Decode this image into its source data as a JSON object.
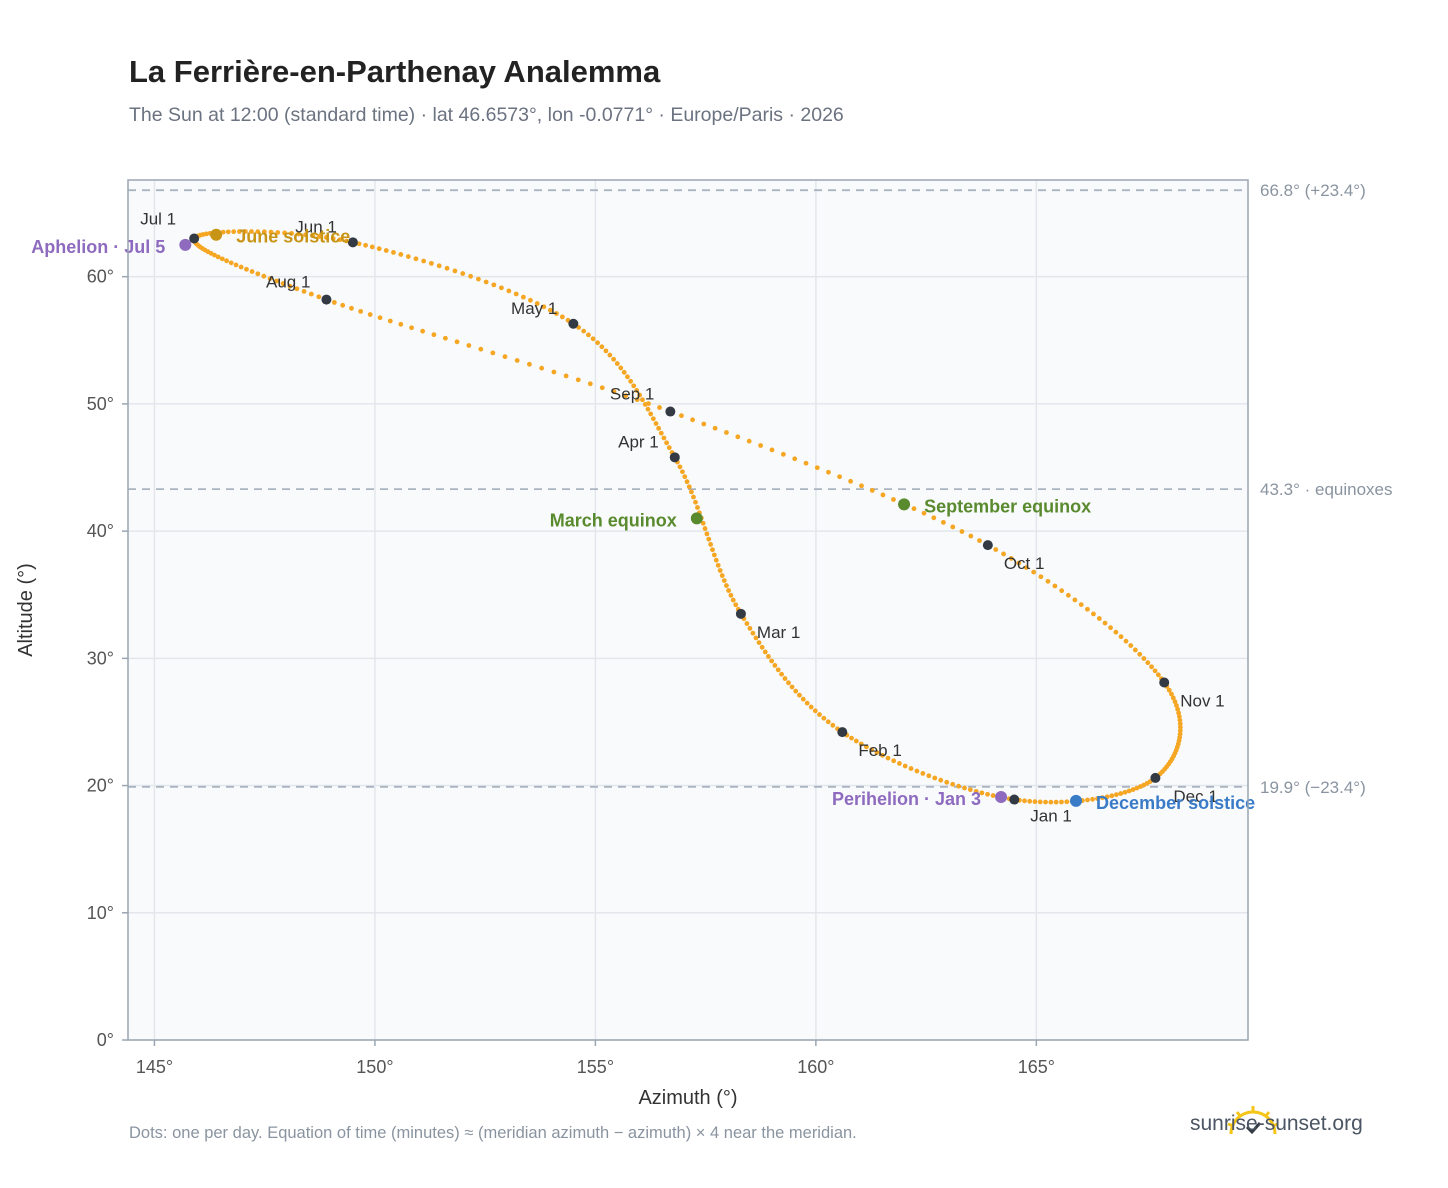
{
  "title": "La Ferrière-en-Parthenay Analemma",
  "subtitle": "The Sun at 12:00 (standard time) · lat 46.6573°, lon -0.0771° · Europe/Paris · 2026",
  "footnote": "Dots: one per day. Equation of time (minutes) ≈ (meridian azimuth − azimuth) × 4 near the meridian.",
  "brand": "sunrise-sunset.org",
  "colors": {
    "path": "#f5a623",
    "month_marker": "#333a44",
    "aphelion": "#8e6bbf",
    "perihelion": "#8e6bbf",
    "june_solstice": "#c89416",
    "december_solstice": "#3a7bc8",
    "equinox": "#5a8a2e",
    "ref_line": "#aab4c0",
    "plot_bg": "#f8fafc",
    "grid": "#e3e7ec"
  },
  "chart_data": {
    "type": "scatter",
    "xlabel": "Azimuth (°)",
    "ylabel": "Altitude (°)",
    "xlim": [
      144.4,
      169.8
    ],
    "ylim": [
      0,
      67.6
    ],
    "xticks": [
      145,
      150,
      155,
      160,
      165
    ],
    "xtick_labels": [
      "145°",
      "150°",
      "155°",
      "160°",
      "165°"
    ],
    "yticks": [
      0,
      10,
      20,
      30,
      40,
      50,
      60
    ],
    "ytick_labels": [
      "0°",
      "10°",
      "20°",
      "30°",
      "40°",
      "50°",
      "60°"
    ],
    "grid": true,
    "reference_lines": [
      {
        "y": 66.8,
        "label": "66.8° (+23.4°)"
      },
      {
        "y": 43.3,
        "label": "43.3° · equinoxes"
      },
      {
        "y": 19.9,
        "label": "19.9° (−23.4°)"
      }
    ],
    "monthly_points": [
      {
        "label": "Jan 1",
        "az": 164.5,
        "alt": 18.9
      },
      {
        "label": "Feb 1",
        "az": 160.6,
        "alt": 24.2
      },
      {
        "label": "Mar 1",
        "az": 158.3,
        "alt": 33.5
      },
      {
        "label": "Apr 1",
        "az": 156.8,
        "alt": 45.8
      },
      {
        "label": "May 1",
        "az": 154.5,
        "alt": 56.3
      },
      {
        "label": "Jun 1",
        "az": 149.5,
        "alt": 62.7
      },
      {
        "label": "Jul 1",
        "az": 145.9,
        "alt": 63.0
      },
      {
        "label": "Aug 1",
        "az": 148.9,
        "alt": 58.2
      },
      {
        "label": "Sep 1",
        "az": 156.7,
        "alt": 49.4
      },
      {
        "label": "Oct 1",
        "az": 163.9,
        "alt": 38.9
      },
      {
        "label": "Nov 1",
        "az": 167.9,
        "alt": 28.1
      },
      {
        "label": "Dec 1",
        "az": 167.7,
        "alt": 20.6
      }
    ],
    "events": [
      {
        "label": "Aphelion · Jul 5",
        "az": 145.7,
        "alt": 62.5,
        "kind": "aphelion"
      },
      {
        "label": "June solstice",
        "az": 146.4,
        "alt": 63.3,
        "kind": "june_solstice"
      },
      {
        "label": "March equinox",
        "az": 157.3,
        "alt": 41.0,
        "kind": "equinox"
      },
      {
        "label": "September equinox",
        "az": 162.0,
        "alt": 42.1,
        "kind": "equinox"
      },
      {
        "label": "Perihelion · Jan 3",
        "az": 164.2,
        "alt": 19.1,
        "kind": "perihelion"
      },
      {
        "label": "December solstice",
        "az": 165.9,
        "alt": 18.8,
        "kind": "december_solstice"
      }
    ]
  }
}
